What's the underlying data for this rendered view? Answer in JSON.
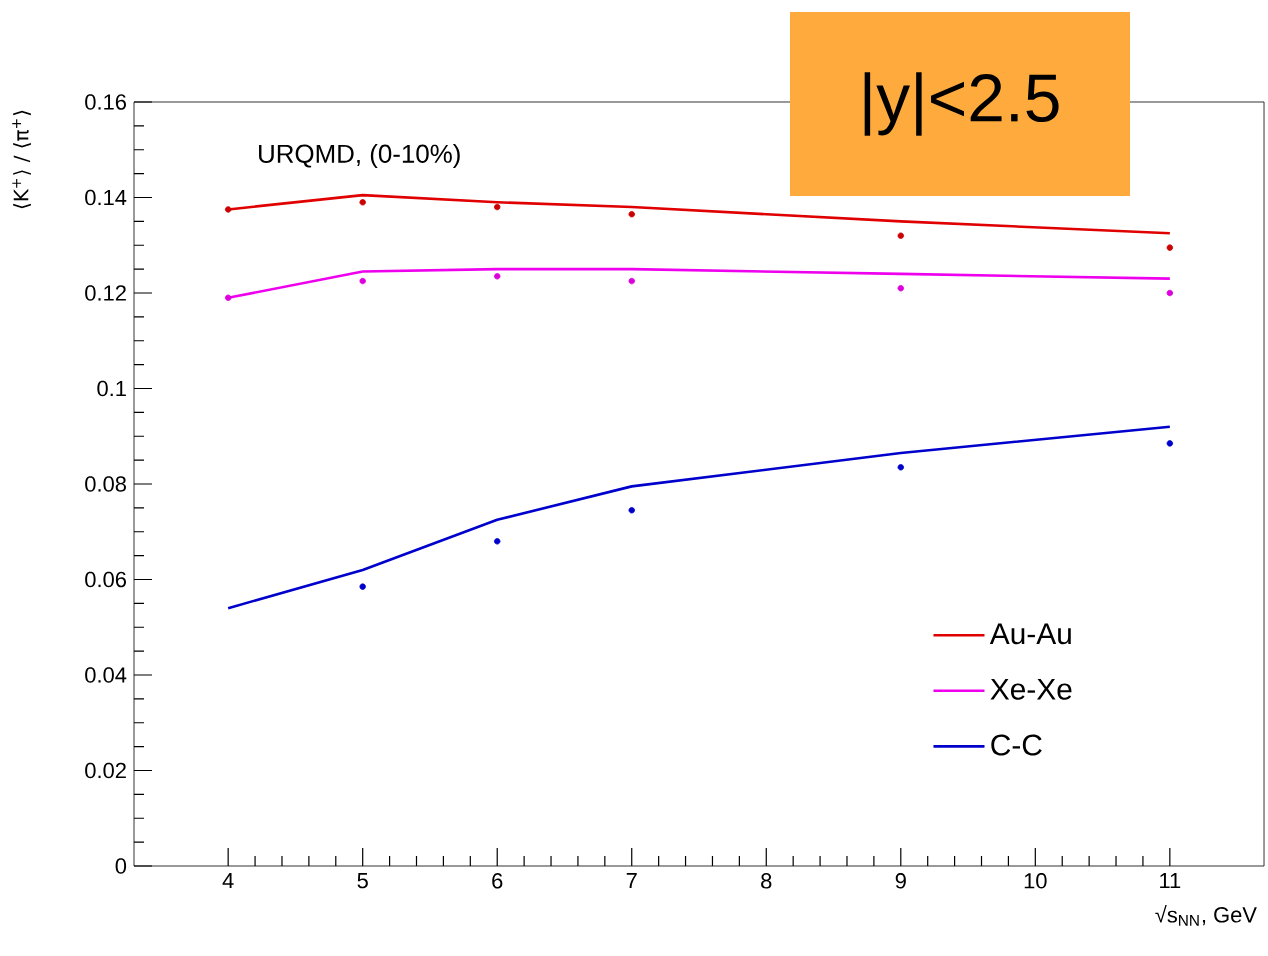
{
  "chart_data": {
    "type": "line",
    "xlabel": "√s$_{NN}$, GeV",
    "ylabel": "⟨K$^{+}$⟩ / ⟨π$^{+}$⟩",
    "annotations": [
      "URQMD, (0-10%)",
      "|y|<2.5"
    ],
    "xlim": [
      3.3,
      11.7
    ],
    "xticks": [
      4,
      5,
      6,
      7,
      8,
      9,
      10,
      11
    ],
    "ylim": [
      0,
      0.16
    ],
    "yticks": [
      0,
      0.02,
      0.04,
      0.06,
      0.08,
      0.1,
      0.12,
      0.14,
      0.16
    ],
    "grid": false,
    "legend": "bottom right",
    "series": [
      {
        "name": "Au-Au",
        "color": "#e00000",
        "x": [
          4,
          5,
          6,
          7,
          9,
          11
        ],
        "values": [
          0.1375,
          0.1405,
          0.139,
          0.138,
          0.135,
          0.1325
        ],
        "marker": "none"
      },
      {
        "name": "Xe-Xe",
        "color": "#ee00ee",
        "x": [
          4,
          5,
          6,
          7,
          9,
          11
        ],
        "values": [
          0.119,
          0.1245,
          0.125,
          0.125,
          0.124,
          0.123
        ],
        "marker": "none"
      },
      {
        "name": "C-C",
        "color": "#0000cc",
        "x": [
          4,
          5,
          6,
          7,
          9,
          11
        ],
        "values": [
          0.054,
          0.062,
          0.0725,
          0.0795,
          0.0865,
          0.092
        ],
        "marker": "none"
      },
      {
        "type": "scatter",
        "color": "#cc0000",
        "x": [
          4,
          5,
          6,
          7,
          9,
          11
        ],
        "values": [
          0.1375,
          0.139,
          0.138,
          0.1365,
          0.132,
          0.1295
        ],
        "marker": "circle"
      },
      {
        "type": "scatter",
        "color": "#dd00dd",
        "x": [
          4,
          5,
          6,
          7,
          9,
          11
        ],
        "values": [
          0.119,
          0.1225,
          0.1235,
          0.1225,
          0.121,
          0.12
        ],
        "marker": "circle"
      },
      {
        "type": "scatter",
        "color": "#0000cc",
        "x": [
          5,
          6,
          7,
          9,
          11
        ],
        "values": [
          0.0585,
          0.068,
          0.0745,
          0.0835,
          0.0885
        ],
        "marker": "circle"
      }
    ]
  }
}
